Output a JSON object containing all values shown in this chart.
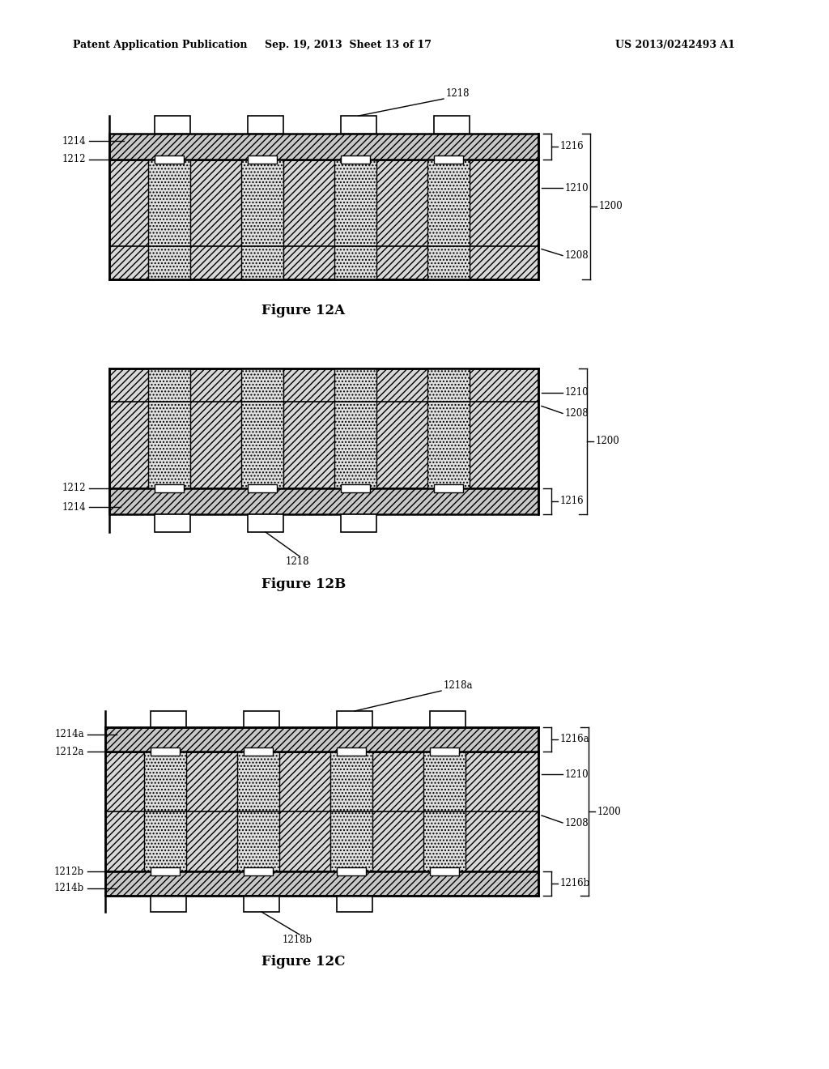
{
  "page_header_left": "Patent Application Publication",
  "page_header_center": "Sep. 19, 2013  Sheet 13 of 17",
  "page_header_right": "US 2013/0242493 A1",
  "fig12A_caption": "Figure 12A",
  "fig12B_caption": "Figure 12B",
  "fig12C_caption": "Figure 12C",
  "background_color": "#ffffff",
  "line_color": "#000000",
  "fill_color_hatch": "#c8c8c8",
  "fill_color_white": "#ffffff",
  "fill_color_body": "#d8d8d8",
  "fill_color_via": "#e0e0e0"
}
